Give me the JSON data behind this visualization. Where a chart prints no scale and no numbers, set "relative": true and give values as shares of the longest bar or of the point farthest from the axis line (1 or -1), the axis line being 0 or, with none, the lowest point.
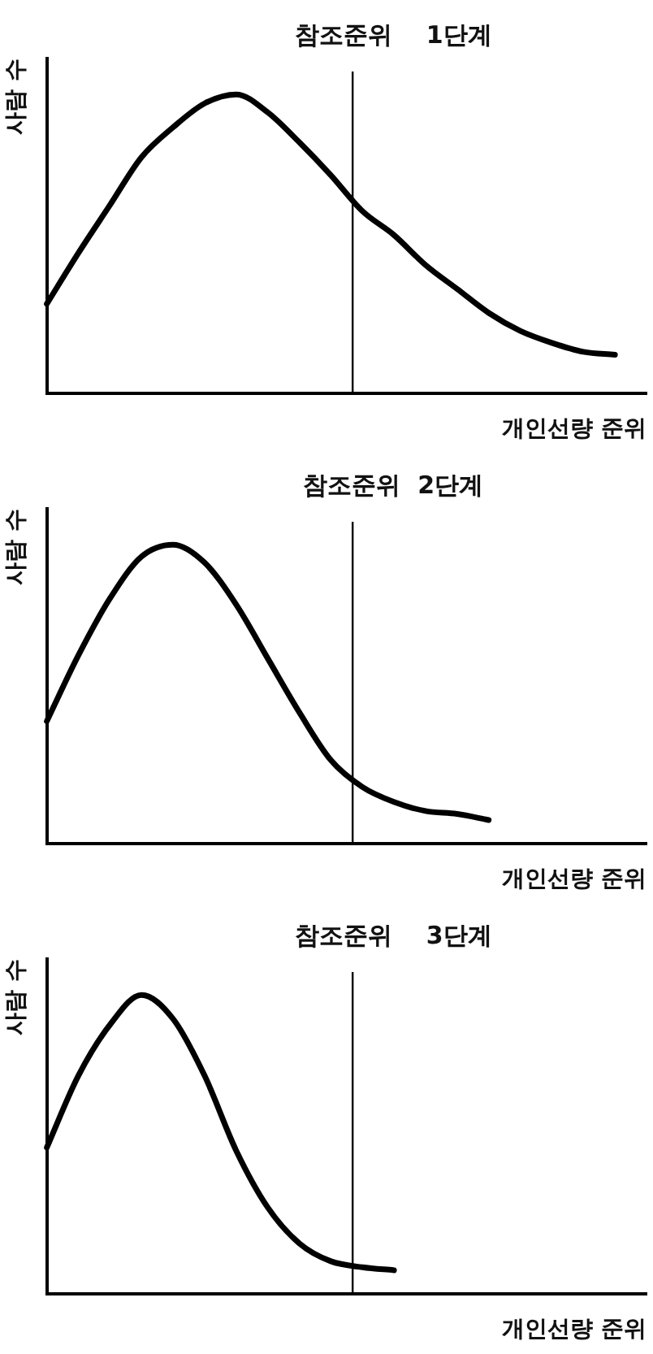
{
  "chart_data": [
    {
      "type": "line",
      "relative": true,
      "xlabel": "개인선량 준위",
      "ylabel": "사람 수",
      "categories": [
        null,
        null,
        null,
        null,
        null,
        null,
        null,
        null,
        null,
        null,
        null,
        null,
        null,
        null,
        null,
        null,
        null,
        null,
        null,
        null
      ],
      "series": [
        {
          "color": "#000000",
          "values": [
            0.3,
            0.47,
            0.63,
            0.79,
            0.89,
            0.97,
            1.0,
            0.94,
            0.84,
            0.73,
            0.61,
            0.53,
            0.43,
            0.35,
            0.27,
            0.21,
            0.17,
            0.14,
            0.13,
            null
          ]
        }
      ],
      "title": "참조준위    1단계",
      "marker": "none",
      "line_style": "solid",
      "grid": false,
      "legend": false,
      "tick_labels": false
    },
    {
      "type": "line",
      "relative": true,
      "xlabel": "개인선량 준위",
      "ylabel": "사람 수",
      "categories": [
        null,
        null,
        null,
        null,
        null,
        null,
        null,
        null,
        null,
        null,
        null,
        null,
        null,
        null,
        null,
        null,
        null,
        null,
        null,
        null
      ],
      "series": [
        {
          "color": "#000000",
          "values": [
            0.41,
            0.63,
            0.82,
            0.96,
            1.0,
            0.94,
            0.8,
            0.62,
            0.44,
            0.28,
            0.19,
            0.14,
            0.11,
            0.1,
            0.08,
            null,
            null,
            null,
            null,
            null
          ]
        }
      ],
      "title": "참조준위  2단계",
      "marker": "none",
      "line_style": "solid",
      "grid": false,
      "legend": false,
      "tick_labels": false
    },
    {
      "type": "line",
      "relative": true,
      "xlabel": "개인선량 준위",
      "ylabel": "사람 수",
      "categories": [
        null,
        null,
        null,
        null,
        null,
        null,
        null,
        null,
        null,
        null,
        null,
        null,
        null,
        null,
        null,
        null,
        null,
        null,
        null,
        null
      ],
      "series": [
        {
          "color": "#000000",
          "values": [
            0.49,
            0.73,
            0.9,
            1.0,
            0.92,
            0.73,
            0.48,
            0.29,
            0.17,
            0.11,
            0.09,
            0.08,
            null,
            null,
            null,
            null,
            null,
            null,
            null,
            null
          ]
        }
      ],
      "title": "참조준위    3단계",
      "marker": "none",
      "line_style": "solid",
      "grid": false,
      "legend": false,
      "tick_labels": false
    }
  ]
}
